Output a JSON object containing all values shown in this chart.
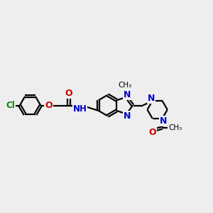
{
  "background_color": "#eeeeee",
  "bond_color": "#000000",
  "nitrogen_color": "#0000cc",
  "oxygen_color": "#cc0000",
  "chlorine_color": "#008800",
  "line_width": 1.6,
  "dbo": 0.055,
  "figsize": [
    3.0,
    3.0
  ],
  "dpi": 100,
  "xlim": [
    0,
    10
  ],
  "ylim": [
    1,
    8
  ]
}
